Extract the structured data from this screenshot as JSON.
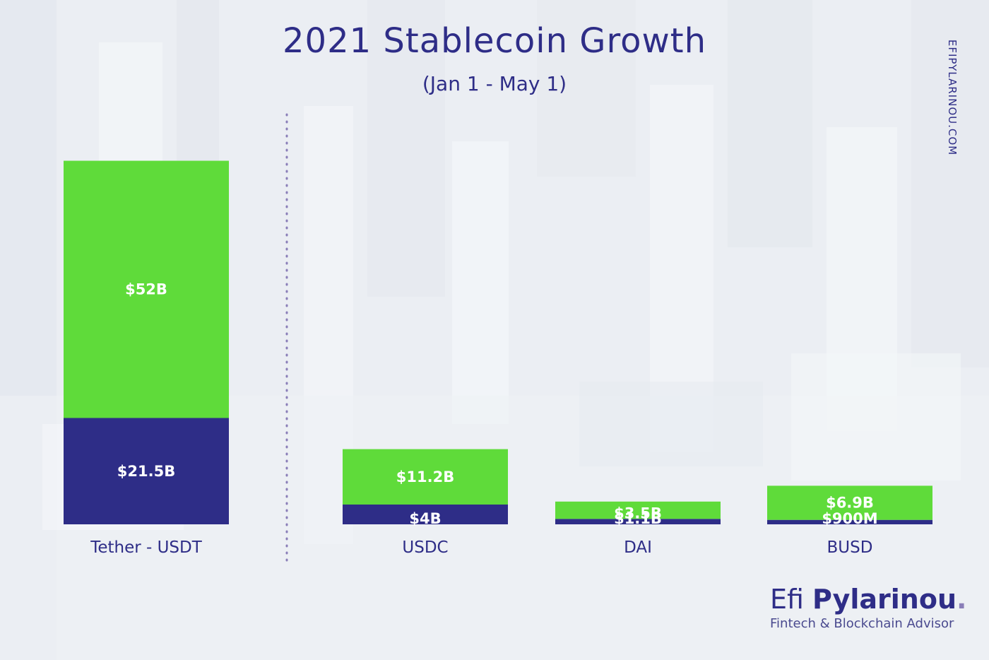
{
  "title": "2021 Stablecoin Growth",
  "subtitle": "(Jan 1 - May 1)",
  "watermark": "EFIPYLARINOU.COM",
  "brand": {
    "first": "Efi",
    "last": "Pylarinou",
    "tagline": "Fintech & Blockchain Advisor"
  },
  "colors": {
    "accent_green": "#5fdb3a",
    "navy": "#2e2d87",
    "divider": "#8a7eb8"
  },
  "chart_data": {
    "type": "bar",
    "stacked": true,
    "title": "2021 Stablecoin Growth",
    "subtitle": "(Jan 1 - May 1)",
    "xlabel": "",
    "ylabel": "",
    "categories": [
      "Tether - USDT",
      "USDC",
      "DAI",
      "BUSD"
    ],
    "series": [
      {
        "values": [
          21.5,
          4,
          1.1,
          0.9
        ],
        "labels": [
          "$21.5B",
          "$4B",
          "$1.1B",
          "$900M"
        ],
        "color": "#2e2d87"
      },
      {
        "values": [
          52,
          11.2,
          3.5,
          6.9
        ],
        "labels": [
          "$52B",
          "$11.2B",
          "$3.5B",
          "$6.9B"
        ],
        "color": "#5fdb3a"
      }
    ],
    "grid": false,
    "legend": "none"
  }
}
